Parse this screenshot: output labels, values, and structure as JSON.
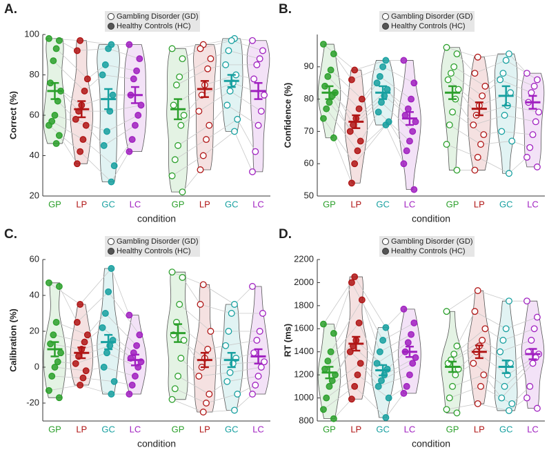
{
  "chart_data": [
    {
      "type": "violin",
      "panel": "A.",
      "ylabel": "Correct (%)",
      "xlabel": "condition",
      "ylim": [
        20,
        100
      ],
      "yticks": [
        20,
        40,
        60,
        80,
        100
      ],
      "series": [
        {
          "name": "Gambling Disorder (GD)",
          "marker": "open",
          "categories": [
            "GP",
            "LP",
            "GC",
            "LC"
          ],
          "colors": [
            "#2ca02c",
            "#b01515",
            "#17a0a0",
            "#a020c0"
          ],
          "groups": [
            {
              "values": [
                93,
                88,
                79,
                75,
                65,
                60,
                55,
                45,
                38,
                30,
                22
              ],
              "mean": 63,
              "err": 5
            },
            {
              "values": [
                95,
                93,
                88,
                83,
                75,
                70,
                62,
                55,
                48,
                40,
                33
              ],
              "mean": 73,
              "err": 4
            },
            {
              "values": [
                98,
                97,
                92,
                85,
                80,
                76,
                72,
                65,
                58,
                52
              ],
              "mean": 77,
              "err": 3
            },
            {
              "values": [
                97,
                92,
                88,
                85,
                78,
                70,
                62,
                55,
                42,
                32
              ],
              "mean": 72,
              "err": 4
            }
          ]
        },
        {
          "name": "Healthy Controls (HC)",
          "marker": "filled",
          "categories": [
            "GP",
            "LP",
            "GC",
            "LC"
          ],
          "colors": [
            "#2ca02c",
            "#b01515",
            "#17a0a0",
            "#a020c0"
          ],
          "groups": [
            {
              "values": [
                98,
                97,
                93,
                87,
                76,
                72,
                67,
                60,
                57,
                55,
                50,
                46
              ],
              "mean": 72,
              "err": 4
            },
            {
              "values": [
                97,
                92,
                78,
                72,
                65,
                62,
                58,
                55,
                48,
                42,
                36
              ],
              "mean": 63,
              "err": 4
            },
            {
              "values": [
                95,
                93,
                85,
                80,
                70,
                62,
                52,
                45,
                35,
                27
              ],
              "mean": 68,
              "err": 5
            },
            {
              "values": [
                95,
                88,
                82,
                78,
                70,
                65,
                60,
                55,
                48,
                42
              ],
              "mean": 70,
              "err": 4
            }
          ]
        }
      ]
    },
    {
      "type": "violin",
      "panel": "B.",
      "ylabel": "Confidence (%)",
      "xlabel": "condition",
      "ylim": [
        50,
        100
      ],
      "yticks": [
        50,
        60,
        70,
        80,
        90
      ],
      "series": [
        {
          "name": "Gambling Disorder (GD)",
          "marker": "open",
          "categories": [
            "GP",
            "LP",
            "GC",
            "LC"
          ],
          "colors": [
            "#2ca02c",
            "#b01515",
            "#17a0a0",
            "#a020c0"
          ],
          "groups": [
            {
              "values": [
                96,
                94,
                90,
                88,
                86,
                83,
                80,
                76,
                72,
                66,
                58
              ],
              "mean": 82,
              "err": 2
            },
            {
              "values": [
                93,
                88,
                84,
                81,
                78,
                75,
                72,
                69,
                66,
                62,
                58
              ],
              "mean": 77,
              "err": 2
            },
            {
              "values": [
                94,
                92,
                88,
                86,
                82,
                78,
                75,
                70,
                67,
                57
              ],
              "mean": 81,
              "err": 3
            },
            {
              "values": [
                88,
                86,
                84,
                82,
                79,
                76,
                73,
                69,
                65,
                62,
                59
              ],
              "mean": 79,
              "err": 2
            }
          ]
        },
        {
          "name": "Healthy Controls (HC)",
          "marker": "filled",
          "categories": [
            "GP",
            "LP",
            "GC",
            "LC"
          ],
          "colors": [
            "#2ca02c",
            "#b01515",
            "#17a0a0",
            "#a020c0"
          ],
          "groups": [
            {
              "values": [
                97,
                94,
                89,
                87,
                84,
                82,
                81,
                79,
                77,
                74,
                68
              ],
              "mean": 82,
              "err": 2
            },
            {
              "values": [
                89,
                86,
                80,
                77,
                74,
                72,
                70,
                67,
                64,
                60,
                54
              ],
              "mean": 73,
              "err": 2
            },
            {
              "values": [
                92,
                90,
                87,
                85,
                83,
                81,
                79,
                76,
                73,
                72
              ],
              "mean": 82,
              "err": 2
            },
            {
              "values": [
                92,
                85,
                80,
                77,
                75,
                73,
                70,
                67,
                64,
                60,
                52
              ],
              "mean": 74,
              "err": 2
            }
          ]
        }
      ]
    },
    {
      "type": "violin",
      "panel": "C.",
      "ylabel": "Calibration (%)",
      "xlabel": "condition",
      "ylim": [
        -30,
        60
      ],
      "yticks": [
        -20,
        0,
        20,
        40,
        60
      ],
      "series": [
        {
          "name": "Gambling Disorder (GD)",
          "marker": "open",
          "categories": [
            "GP",
            "LP",
            "GC",
            "LC"
          ],
          "colors": [
            "#2ca02c",
            "#b01515",
            "#17a0a0",
            "#a020c0"
          ],
          "groups": [
            {
              "values": [
                53,
                50,
                35,
                25,
                18,
                15,
                5,
                -5,
                -12,
                -18
              ],
              "mean": 19,
              "err": 5
            },
            {
              "values": [
                46,
                35,
                20,
                10,
                5,
                0,
                -5,
                -15,
                -20,
                -25
              ],
              "mean": 4,
              "err": 4
            },
            {
              "values": [
                35,
                30,
                20,
                12,
                5,
                2,
                -3,
                -8,
                -15,
                -24
              ],
              "mean": 4,
              "err": 4
            },
            {
              "values": [
                45,
                30,
                20,
                15,
                8,
                3,
                0,
                -5,
                -10,
                -15
              ],
              "mean": 6,
              "err": 4
            }
          ]
        },
        {
          "name": "Healthy Controls (HC)",
          "marker": "filled",
          "categories": [
            "GP",
            "LP",
            "GC",
            "LC"
          ],
          "colors": [
            "#2ca02c",
            "#b01515",
            "#17a0a0",
            "#a020c0"
          ],
          "groups": [
            {
              "values": [
                47,
                45,
                25,
                18,
                13,
                8,
                3,
                0,
                -5,
                -13,
                -17
              ],
              "mean": 10,
              "err": 4
            },
            {
              "values": [
                35,
                25,
                18,
                14,
                10,
                6,
                2,
                -2,
                -6,
                -10
              ],
              "mean": 8,
              "err": 3
            },
            {
              "values": [
                55,
                42,
                30,
                22,
                15,
                12,
                8,
                0,
                -8,
                -15
              ],
              "mean": 14,
              "err": 4
            },
            {
              "values": [
                29,
                18,
                12,
                8,
                5,
                3,
                0,
                -5,
                -10,
                -15
              ],
              "mean": 4,
              "err": 3
            }
          ]
        }
      ]
    },
    {
      "type": "violin",
      "panel": "D.",
      "ylabel": "RT (ms)",
      "xlabel": "condition",
      "ylim": [
        800,
        2200
      ],
      "yticks": [
        800,
        1000,
        1200,
        1400,
        1600,
        1800,
        2000,
        2200
      ],
      "series": [
        {
          "name": "Gambling Disorder (GD)",
          "marker": "open",
          "categories": [
            "GP",
            "LP",
            "GC",
            "LC"
          ],
          "colors": [
            "#2ca02c",
            "#b01515",
            "#17a0a0",
            "#a020c0"
          ],
          "groups": [
            {
              "values": [
                1750,
                1450,
                1380,
                1330,
                1300,
                1250,
                1200,
                1100,
                1000,
                900,
                870
              ],
              "mean": 1270,
              "err": 45
            },
            {
              "values": [
                1930,
                1750,
                1600,
                1500,
                1450,
                1400,
                1300,
                1200,
                1100,
                950
              ],
              "mean": 1400,
              "err": 55
            },
            {
              "values": [
                1840,
                1600,
                1500,
                1400,
                1300,
                1200,
                1100,
                1000,
                950,
                890
              ],
              "mean": 1270,
              "err": 55
            },
            {
              "values": [
                1840,
                1700,
                1600,
                1500,
                1400,
                1380,
                1350,
                1300,
                1100,
                1000,
                910
              ],
              "mean": 1380,
              "err": 45
            }
          ]
        },
        {
          "name": "Healthy Controls (HC)",
          "marker": "filled",
          "categories": [
            "GP",
            "LP",
            "GC",
            "LC"
          ],
          "colors": [
            "#2ca02c",
            "#b01515",
            "#17a0a0",
            "#a020c0"
          ],
          "groups": [
            {
              "values": [
                1640,
                1560,
                1400,
                1320,
                1250,
                1200,
                1150,
                1100,
                1000,
                900,
                820
              ],
              "mean": 1220,
              "err": 50
            },
            {
              "values": [
                2050,
                2000,
                1850,
                1650,
                1500,
                1450,
                1400,
                1300,
                1200,
                1100,
                990
              ],
              "mean": 1470,
              "err": 60
            },
            {
              "values": [
                1610,
                1500,
                1400,
                1300,
                1250,
                1200,
                1150,
                1100,
                1000,
                830
              ],
              "mean": 1240,
              "err": 45
            },
            {
              "values": [
                1770,
                1650,
                1550,
                1480,
                1400,
                1350,
                1300,
                1200,
                1100,
                1040
              ],
              "mean": 1400,
              "err": 45
            }
          ]
        }
      ]
    }
  ]
}
